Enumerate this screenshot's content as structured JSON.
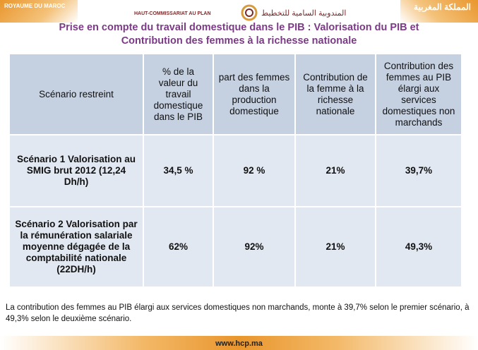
{
  "header": {
    "left": "ROYAUME DU MAROC",
    "logo_fr": "HAUT-COMMISSARIAT AU PLAN",
    "logo_ar": "المندوبية السامية للتخطيط",
    "right": "المملكة المغربية"
  },
  "title": [
    "Prise en compte du travail domestique dans le PIB : Valorisation du PIB et",
    "Contribution des femmes à la richesse nationale"
  ],
  "table": {
    "header": [
      "Scénario restreint",
      "% de la valeur du travail domestique dans le PIB",
      "part des femmes dans la production domestique",
      "Contribution de la femme à la richesse nationale",
      "Contribution des femmes au PIB élargi aux services domestiques non marchands"
    ],
    "rows": [
      [
        "Scénario 1 Valorisation au SMIG brut 2012 (12,24 Dh/h)",
        "34,5 %",
        "92 %",
        "21%",
        "39,7%"
      ],
      [
        "Scénario 2 Valorisation par la rémunération salariale moyenne dégagée de la comptabilité nationale (22DH/h)",
        "62%",
        "92%",
        "21%",
        "49,3%"
      ]
    ]
  },
  "note": "La contribution des femmes au PIB élargi aux services domestiques non marchands, monte à 39,7% selon le premier scénario, à 49,3% selon le deuxième scénario.",
  "footer": "www.hcp.ma"
}
